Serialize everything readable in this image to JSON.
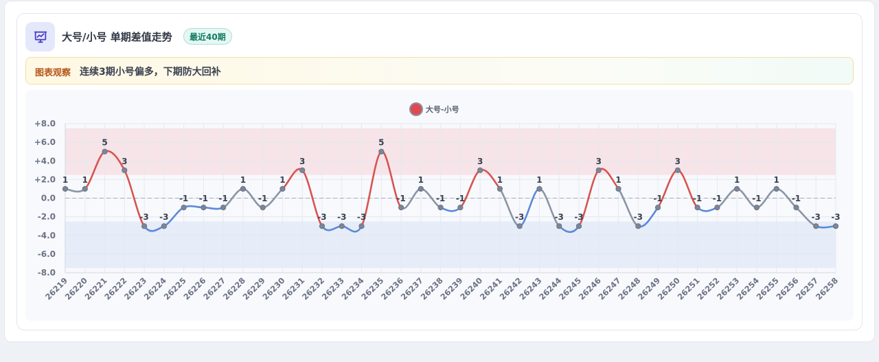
{
  "header": {
    "title": "大号/小号 单期差值走势",
    "badge": "最近40期",
    "icon": "chart-presentation-icon"
  },
  "note": {
    "label": "图表观察",
    "text": "连续3期小号偏多，下期防大回补"
  },
  "colors": {
    "up": "#d9534f",
    "down": "#5b8ad9",
    "neutral": "#8a95a5",
    "upper_band": "#f6e4e8",
    "lower_band": "#e6ecf8"
  },
  "chart_data": {
    "type": "line",
    "title": "",
    "xlabel": "",
    "ylabel": "",
    "ylim": [
      -8,
      8
    ],
    "yticks": [
      "+8.0",
      "+6.0",
      "+4.0",
      "+2.0",
      "0.0",
      "-2.0",
      "-4.0",
      "-6.0",
      "-8.0"
    ],
    "bands": {
      "upper": [
        2.5,
        7.5
      ],
      "lower": [
        -7.5,
        -2.5
      ]
    },
    "zero_line": true,
    "grid": true,
    "legend": {
      "position": "top-center",
      "label": "大号-小号"
    },
    "categories": [
      "26219",
      "26220",
      "26221",
      "26222",
      "26223",
      "26224",
      "26225",
      "26226",
      "26227",
      "26228",
      "26229",
      "26230",
      "26231",
      "26232",
      "26233",
      "26234",
      "26235",
      "26236",
      "26237",
      "26238",
      "26239",
      "26240",
      "26241",
      "26242",
      "26243",
      "26244",
      "26245",
      "26246",
      "26247",
      "26248",
      "26249",
      "26250",
      "26251",
      "26252",
      "26253",
      "26254",
      "26255",
      "26256",
      "26257",
      "26258"
    ],
    "series": [
      {
        "name": "大号-小号",
        "values": [
          1,
          1,
          5,
          3,
          -3,
          -3,
          -1,
          -1,
          -1,
          1,
          -1,
          1,
          3,
          -3,
          -3,
          -3,
          5,
          -1,
          1,
          -1,
          -1,
          3,
          1,
          -3,
          1,
          -3,
          -3,
          3,
          1,
          -3,
          -1,
          3,
          -1,
          -1,
          1,
          -1,
          1,
          -1,
          -3,
          -3
        ],
        "labels": [
          "1",
          "1",
          "5",
          "3",
          "-3",
          "-3",
          "-1",
          "-1",
          "-1",
          "1",
          "-1",
          "1",
          "3",
          "-3",
          "-3",
          "-3",
          "5",
          "-1",
          "1",
          "-1",
          "-1",
          "3",
          "1",
          "-3",
          "1",
          "-3",
          "-3",
          "3",
          "1",
          "-3",
          "-1",
          "3",
          "-1",
          "-1",
          "1",
          "-1",
          "1",
          "-1",
          "-3",
          "-3"
        ]
      }
    ]
  }
}
